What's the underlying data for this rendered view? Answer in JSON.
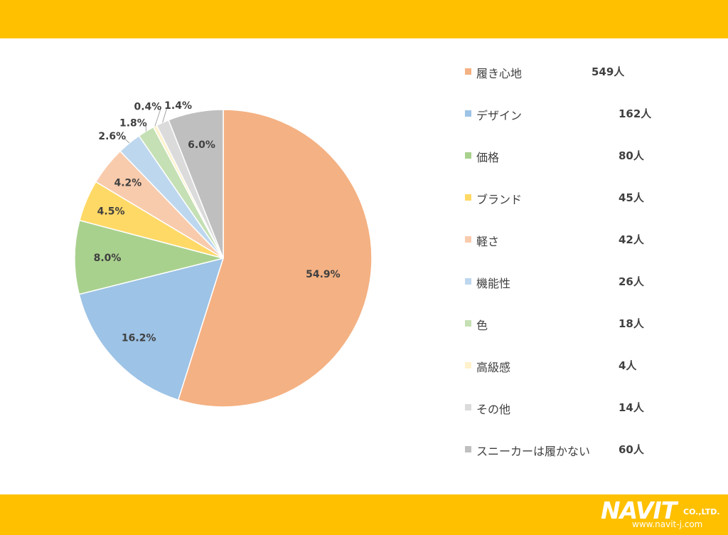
{
  "chart_data": {
    "type": "pie",
    "slices": [
      {
        "label": "履き心地",
        "count": "549人",
        "value": 54.9,
        "pct_label": "54.9%",
        "color": "#F4B183"
      },
      {
        "label": "デザイン",
        "count": "162人",
        "value": 16.2,
        "pct_label": "16.2%",
        "color": "#9DC3E6"
      },
      {
        "label": "価格",
        "count": "80人",
        "value": 8.0,
        "pct_label": "8.0%",
        "color": "#A9D18E"
      },
      {
        "label": "ブランド",
        "count": "45人",
        "value": 4.5,
        "pct_label": "4.5%",
        "color": "#FFD966"
      },
      {
        "label": "軽さ",
        "count": "42人",
        "value": 4.2,
        "pct_label": "4.2%",
        "color": "#F8CBAD"
      },
      {
        "label": "機能性",
        "count": "26人",
        "value": 2.6,
        "pct_label": "2.6%",
        "color": "#BDD7EE"
      },
      {
        "label": "色",
        "count": "18人",
        "value": 1.8,
        "pct_label": "1.8%",
        "color": "#C5E0B4"
      },
      {
        "label": "高級感",
        "count": "4人",
        "value": 0.4,
        "pct_label": "0.4%",
        "color": "#FFF2CC"
      },
      {
        "label": "その他",
        "count": "14人",
        "value": 1.4,
        "pct_label": "1.4%",
        "color": "#DBDBDB"
      },
      {
        "label": "スニーカーは履かない",
        "count": "60人",
        "value": 6.0,
        "pct_label": "6.0%",
        "color": "#BFBFBF"
      }
    ],
    "legend_position": "right",
    "start_direction": "top",
    "direction": "clockwise"
  },
  "logo": {
    "text": "NAVIT",
    "suffix": "CO.,LTD.",
    "url": "www.navit-j.com"
  },
  "colors": {
    "band": "#FFC000"
  }
}
